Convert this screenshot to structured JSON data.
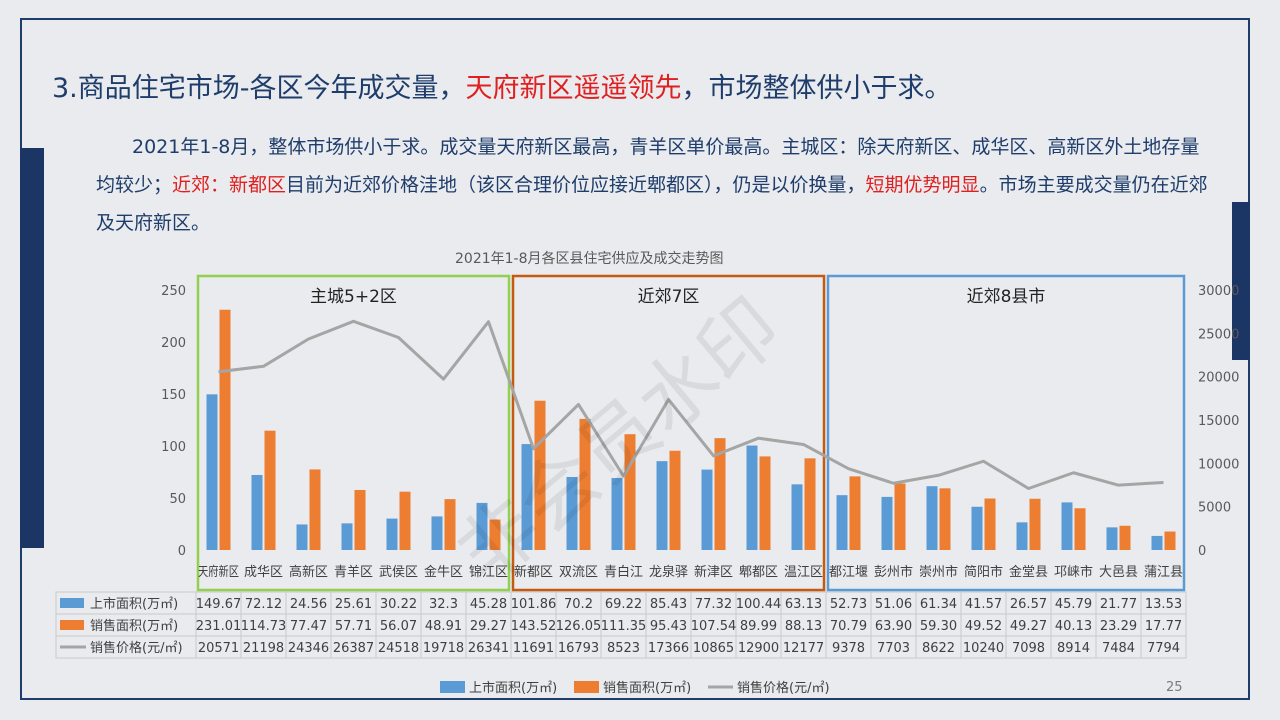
{
  "title": {
    "part1": "3.商品住宅市场-各区今年成交量，",
    "highlight": "天府新区遥遥领先",
    "part2": "，市场整体供小于求。"
  },
  "paragraph": {
    "s1": "2021年1-8月，整体市场供小于求。成交量天府新区最高，青羊区单价最高。主城区：除天府新区、成华区、高新区外土地存量均较少；",
    "r1": "近郊：新都区",
    "s2": "目前为近郊价格洼地（该区合理价位应接近郫都区），仍是以价换量，",
    "r2": "短期优势明显",
    "s3": "。市场主要成交量仍在近郊及天府新区。"
  },
  "watermark": "非会员水印",
  "page_number": "25",
  "colors": {
    "supply": "#5b9bd5",
    "sales": "#ed7d31",
    "price": "#a5a5a5",
    "group_main": "#92d050",
    "group_near": "#c55a11",
    "group_county": "#5b9bd5",
    "accent_red": "#e02020",
    "navy": "#1f3d6b"
  },
  "chart_data": {
    "type": "bar",
    "title": "2021年1-8月各区县住宅供应及成交走势图",
    "categories": [
      "天府新区",
      "成华区",
      "高新区",
      "青羊区",
      "武侯区",
      "金牛区",
      "锦江区",
      "新都区",
      "双流区",
      "青白江",
      "龙泉驿",
      "新津区",
      "郫都区",
      "温江区",
      "都江堰",
      "彭州市",
      "崇州市",
      "简阳市",
      "金堂县",
      "邛崃市",
      "大邑县",
      "蒲江县"
    ],
    "series": [
      {
        "name": "上市面积(万㎡)",
        "type": "bar",
        "axis": "left",
        "values": [
          149.67,
          72.12,
          24.56,
          25.61,
          30.22,
          32.3,
          45.28,
          101.86,
          70.2,
          69.22,
          85.43,
          77.32,
          100.44,
          63.13,
          52.73,
          51.06,
          61.34,
          41.57,
          26.57,
          45.79,
          21.77,
          13.53
        ]
      },
      {
        "name": "销售面积(万㎡)",
        "type": "bar",
        "axis": "left",
        "values": [
          231.01,
          114.73,
          77.47,
          57.71,
          56.07,
          48.91,
          29.27,
          143.52,
          126.05,
          111.35,
          95.43,
          107.54,
          89.99,
          88.13,
          70.79,
          63.9,
          59.3,
          49.52,
          49.27,
          40.13,
          23.29,
          17.77
        ]
      },
      {
        "name": "销售价格(元/㎡)",
        "type": "line",
        "axis": "right",
        "values": [
          20571,
          21198,
          24346,
          26387,
          24518,
          19718,
          26341,
          11691,
          16793,
          8523,
          17366,
          10865,
          12900,
          12177,
          9378,
          7703,
          8622,
          10240,
          7098,
          8914,
          7484,
          7794
        ]
      }
    ],
    "table_labels": [
      "上市面积(万㎡)",
      "销售面积(万㎡)",
      "销售价格(元/㎡)"
    ],
    "table_values": [
      [
        "149.67",
        "72.12",
        "24.56",
        "25.61",
        "30.22",
        "32.3",
        "45.28",
        "101.86",
        "70.2",
        "69.22",
        "85.43",
        "77.32",
        "100.44",
        "63.13",
        "52.73",
        "51.06",
        "61.34",
        "41.57",
        "26.57",
        "45.79",
        "21.77",
        "13.53"
      ],
      [
        "231.01",
        "114.73",
        "77.47",
        "57.71",
        "56.07",
        "48.91",
        "29.27",
        "143.52",
        "126.05",
        "111.35",
        "95.43",
        "107.54",
        "89.99",
        "88.13",
        "70.79",
        "63.90",
        "59.30",
        "49.52",
        "49.27",
        "40.13",
        "23.29",
        "17.77"
      ],
      [
        "20571",
        "21198",
        "24346",
        "26387",
        "24518",
        "19718",
        "26341",
        "11691",
        "16793",
        "8523",
        "17366",
        "10865",
        "12900",
        "12177",
        "9378",
        "7703",
        "8622",
        "10240",
        "7098",
        "8914",
        "7484",
        "7794"
      ]
    ],
    "groups": [
      {
        "label": "主城5+2区",
        "from": 0,
        "to": 6,
        "color": "#92d050"
      },
      {
        "label": "近郊7区",
        "from": 7,
        "to": 13,
        "color": "#c55a11"
      },
      {
        "label": "近郊8县市",
        "from": 14,
        "to": 21,
        "color": "#5b9bd5"
      }
    ],
    "y_left": {
      "min": 0,
      "max": 250,
      "ticks": [
        "0",
        "50",
        "100",
        "150",
        "200",
        "250"
      ]
    },
    "y_right": {
      "min": 0,
      "max": 30000,
      "ticks": [
        "0",
        "5000",
        "10000",
        "15000",
        "20000",
        "25000",
        "30000"
      ]
    },
    "legend": [
      "上市面积(万㎡)",
      "销售面积(万㎡)",
      "销售价格(元/㎡)"
    ],
    "legend_position": "bottom",
    "grid": false
  }
}
